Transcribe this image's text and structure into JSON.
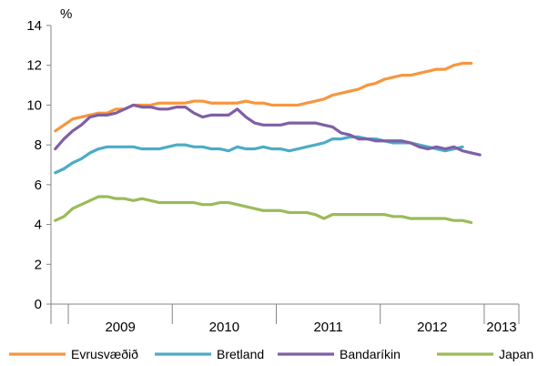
{
  "chart_data": {
    "type": "line",
    "unit_label": "%",
    "ylim": [
      0,
      14
    ],
    "y_ticks": [
      0,
      2,
      4,
      6,
      8,
      10,
      12,
      14
    ],
    "x_month_range": [
      "2008-11",
      "2013-04"
    ],
    "year_labels": [
      "2009",
      "2010",
      "2011",
      "2012",
      "2013"
    ],
    "legend_position": "bottom",
    "grid": false,
    "series": [
      {
        "name": "Evrusvæðið",
        "color": "#F7963E",
        "values": [
          8.7,
          9.0,
          9.3,
          9.4,
          9.5,
          9.6,
          9.6,
          9.8,
          9.8,
          10.0,
          10.0,
          10.0,
          10.1,
          10.1,
          10.1,
          10.1,
          10.2,
          10.2,
          10.1,
          10.1,
          10.1,
          10.1,
          10.2,
          10.1,
          10.1,
          10.0,
          10.0,
          10.0,
          10.0,
          10.1,
          10.2,
          10.3,
          10.5,
          10.6,
          10.7,
          10.8,
          11.0,
          11.1,
          11.3,
          11.4,
          11.5,
          11.5,
          11.6,
          11.7,
          11.8,
          11.8,
          12.0,
          12.1,
          12.1
        ]
      },
      {
        "name": "Bretland",
        "color": "#4BACC6",
        "values": [
          6.6,
          6.8,
          7.1,
          7.3,
          7.6,
          7.8,
          7.9,
          7.9,
          7.9,
          7.9,
          7.8,
          7.8,
          7.8,
          7.9,
          8.0,
          8.0,
          7.9,
          7.9,
          7.8,
          7.8,
          7.7,
          7.9,
          7.8,
          7.8,
          7.9,
          7.8,
          7.8,
          7.7,
          7.8,
          7.9,
          8.0,
          8.1,
          8.3,
          8.3,
          8.4,
          8.4,
          8.3,
          8.3,
          8.2,
          8.1,
          8.1,
          8.1,
          8.0,
          7.9,
          7.8,
          7.7,
          7.8,
          7.9
        ]
      },
      {
        "name": "Bandaríkin",
        "color": "#7F5FA5",
        "values": [
          7.8,
          8.3,
          8.7,
          9.0,
          9.4,
          9.5,
          9.5,
          9.6,
          9.8,
          10.0,
          9.9,
          9.9,
          9.8,
          9.8,
          9.9,
          9.9,
          9.6,
          9.4,
          9.5,
          9.5,
          9.5,
          9.8,
          9.4,
          9.1,
          9.0,
          9.0,
          9.0,
          9.1,
          9.1,
          9.1,
          9.1,
          9.0,
          8.9,
          8.6,
          8.5,
          8.3,
          8.3,
          8.2,
          8.2,
          8.2,
          8.2,
          8.1,
          7.9,
          7.8,
          7.9,
          7.8,
          7.9,
          7.7,
          7.6,
          7.5
        ]
      },
      {
        "name": "Japan",
        "color": "#9BBB59",
        "values": [
          4.2,
          4.4,
          4.8,
          5.0,
          5.2,
          5.4,
          5.4,
          5.3,
          5.3,
          5.2,
          5.3,
          5.2,
          5.1,
          5.1,
          5.1,
          5.1,
          5.1,
          5.0,
          5.0,
          5.1,
          5.1,
          5.0,
          4.9,
          4.8,
          4.7,
          4.7,
          4.7,
          4.6,
          4.6,
          4.6,
          4.5,
          4.3,
          4.5,
          4.5,
          4.5,
          4.5,
          4.5,
          4.5,
          4.5,
          4.4,
          4.4,
          4.3,
          4.3,
          4.3,
          4.3,
          4.3,
          4.2,
          4.2,
          4.1
        ]
      }
    ]
  }
}
